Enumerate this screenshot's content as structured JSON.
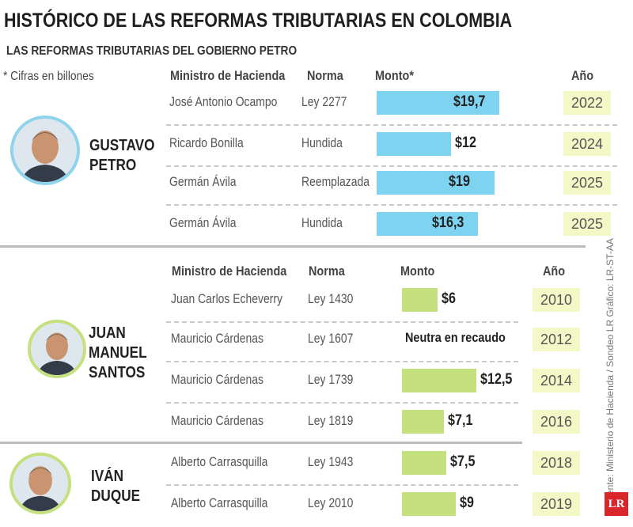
{
  "title": "HISTÓRICO DE LAS REFORMAS TRIBUTARIAS EN COLOMBIA",
  "subtitle": "LAS REFORMAS TRIBUTARIAS DEL GOBIERNO PETRO",
  "note": "* Cifras en billones",
  "source": "Fuente: Ministerio de Hacienda / Sondeo LR Gráfico: LR-ST-AA",
  "logo": "LR",
  "colors": {
    "petro_bar": "#7dd3f0",
    "santos_duque_bar": "#c4e07f",
    "year_box": "#f4f7c6",
    "logo": "#d8262c"
  },
  "chart_data": {
    "type": "bar",
    "unit": "billones",
    "sections": [
      {
        "president": [
          "GUSTAVO",
          "PETRO"
        ],
        "headers": {
          "minister": "Ministro de Hacienda",
          "norma": "Norma",
          "monto": "Monto*",
          "year": "Año"
        },
        "rows": [
          {
            "minister": "José Antonio Ocampo",
            "norma": "Ley 2277",
            "value": 19.7,
            "label": "$19,7",
            "year": "2022"
          },
          {
            "minister": "Ricardo Bonilla",
            "norma": "Hundida",
            "value": 12,
            "label": "$12",
            "year": "2024"
          },
          {
            "minister": "Germán Ávila",
            "norma": "Reemplazada",
            "value": 19,
            "label": "$19",
            "year": "2025"
          },
          {
            "minister": "Germán Ávila",
            "norma": "Hundida",
            "value": 16.3,
            "label": "$16,3",
            "year": "2025"
          }
        ]
      },
      {
        "president": [
          "JUAN",
          "MANUEL",
          "SANTOS"
        ],
        "headers": {
          "minister": "Ministro de Hacienda",
          "norma": "Norma",
          "monto": "Monto",
          "year": "Año"
        },
        "rows": [
          {
            "minister": "Juan Carlos Echeverry",
            "norma": "Ley 1430",
            "value": 6,
            "label": "$6",
            "year": "2010"
          },
          {
            "minister": "Mauricio Cárdenas",
            "norma": "Ley 1607",
            "value": null,
            "label": "Neutra en recaudo",
            "year": "2012"
          },
          {
            "minister": "Mauricio Cárdenas",
            "norma": "Ley 1739",
            "value": 12.5,
            "label": "$12,5",
            "year": "2014"
          },
          {
            "minister": "Mauricio Cárdenas",
            "norma": "Ley 1819",
            "value": 7.1,
            "label": "$7,1",
            "year": "2016"
          }
        ]
      },
      {
        "president": [
          "IVÁN",
          "DUQUE"
        ],
        "rows": [
          {
            "minister": "Alberto Carrasquilla",
            "norma": "Ley 1943",
            "value": 7.5,
            "label": "$7,5",
            "year": "2018"
          },
          {
            "minister": "Alberto Carrasquilla",
            "norma": "Ley 2010",
            "value": 9,
            "label": "$9",
            "year": "2019"
          }
        ]
      }
    ]
  }
}
